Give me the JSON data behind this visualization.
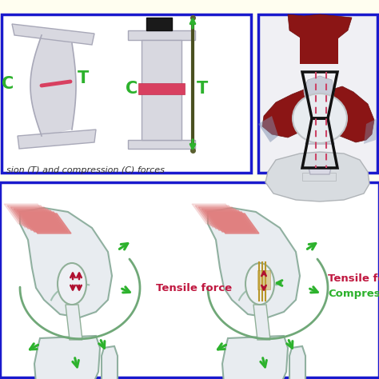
{
  "background_color": "#fffef0",
  "blue_border": "#1a1acd",
  "green_color": "#2db22d",
  "red_color": "#c81442",
  "dark_red": "#8b0000",
  "caption_text": "sion (T) and compression (C) forces",
  "tensile_label": "Tensile force",
  "compression_label": "Compression",
  "C_label": "C",
  "T_label": "T",
  "fig_width": 4.74,
  "fig_height": 4.74,
  "dpi": 100,
  "beam_color": "#d8d8e0",
  "beam_edge": "#a8a8b8",
  "wire_color": "#5a6030",
  "knee_fill": "#e8eef0",
  "knee_edge": "#80b090",
  "tendon_pink": "#e89090",
  "bone_fill": "#e8ecf0",
  "bone_edge": "#90a8a0"
}
